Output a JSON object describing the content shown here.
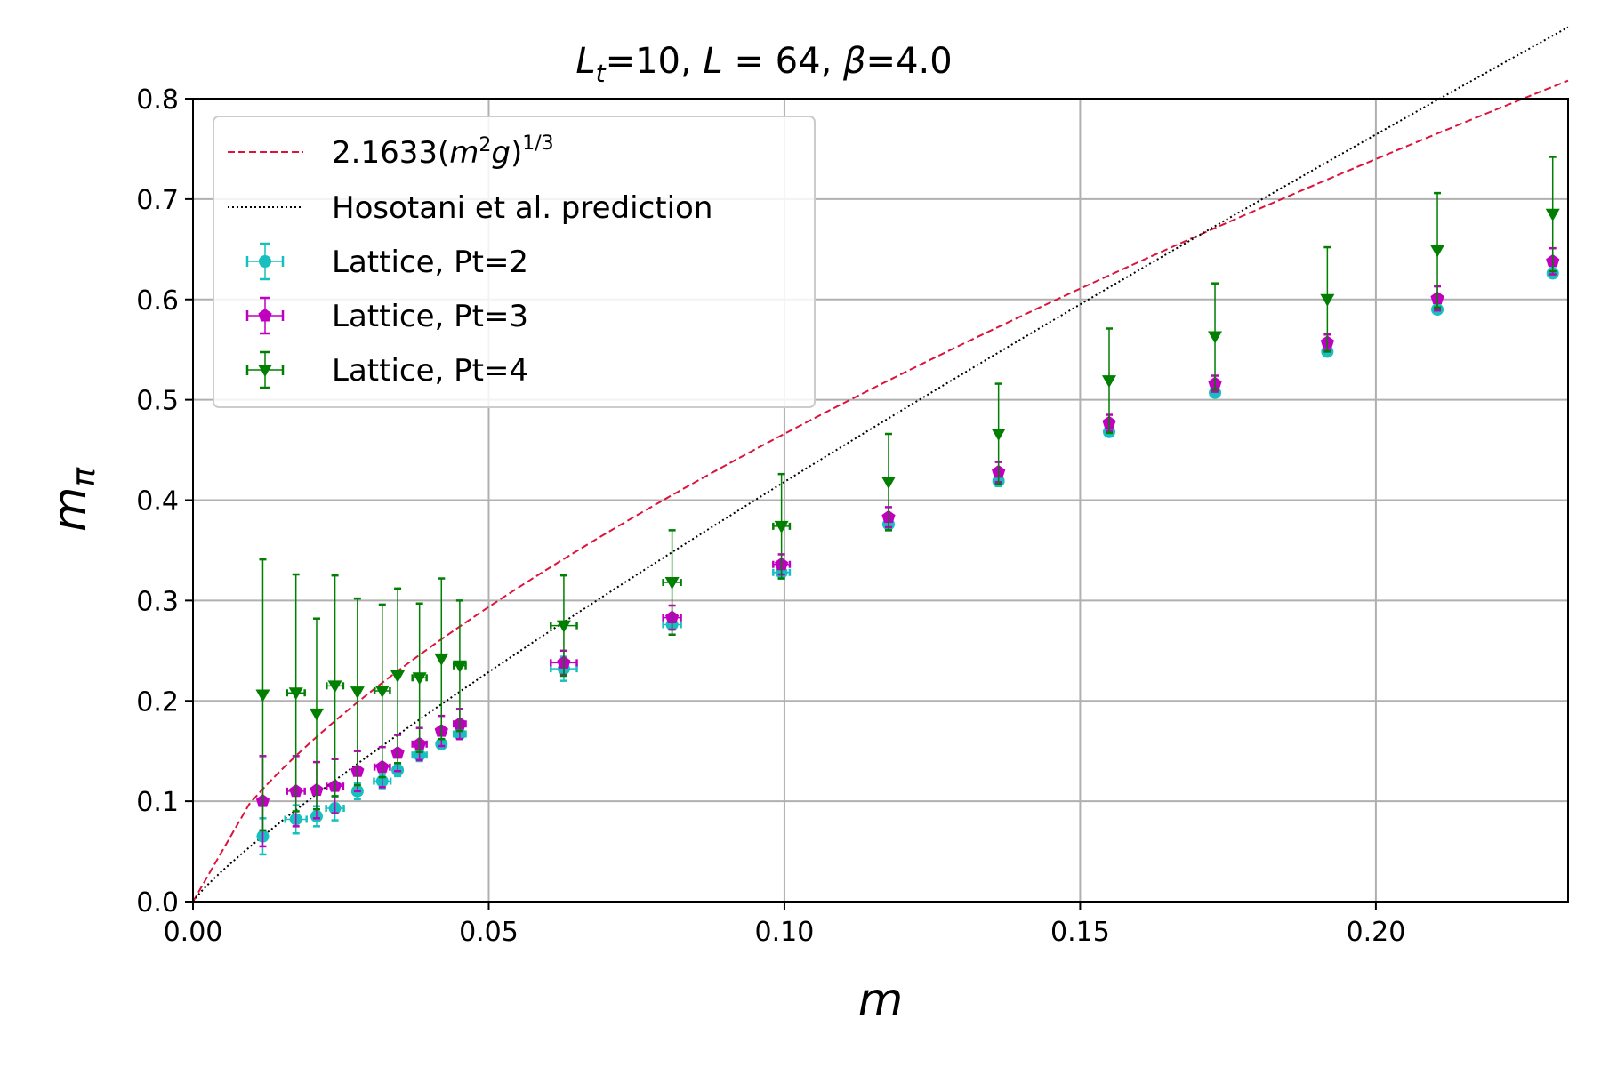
{
  "chart_data": {
    "type": "scatter",
    "title": "L_t=10,  L = 64, β=4.0",
    "title_parts": {
      "L1": "L",
      "sub": "t",
      "rest1": "=10,  ",
      "L2": "L",
      "rest2": " = 64, ",
      "beta": "β",
      "rest3": "=4.0"
    },
    "xlabel": "m",
    "ylabel_main": "m",
    "ylabel_sub": "π",
    "xlim": [
      0.0,
      0.2325
    ],
    "ylim": [
      0.0,
      0.8
    ],
    "x_ticks": [
      "0.00",
      "0.05",
      "0.10",
      "0.15",
      "0.20"
    ],
    "x_tick_values": [
      0.0,
      0.05,
      0.1,
      0.15,
      0.2
    ],
    "y_ticks": [
      "0.0",
      "0.1",
      "0.2",
      "0.3",
      "0.4",
      "0.5",
      "0.6",
      "0.7",
      "0.8"
    ],
    "y_tick_values": [
      0.0,
      0.1,
      0.2,
      0.3,
      0.4,
      0.5,
      0.6,
      0.7,
      0.8
    ],
    "grid": true,
    "legend_position": "upper-left",
    "lines": [
      {
        "name": "2.1633(m²g)^{1/3}",
        "legend_base": "2.1633(",
        "legend_m": "m",
        "legend_sup2": "2",
        "legend_g": "g",
        "legend_close": ")",
        "legend_exp": "1/3",
        "color": "#dc143c",
        "style": "dashed",
        "formula": "2.1633*x^(2/3)"
      },
      {
        "name": "Hosotani et al. prediction",
        "color": "#000000",
        "style": "dotted",
        "formula": "3.1*x^0.87"
      }
    ],
    "series": [
      {
        "name": "Lattice, Pt=2",
        "color": "#17bfbf",
        "marker": "circle",
        "x": [
          0.0118,
          0.0174,
          0.0209,
          0.024,
          0.0278,
          0.032,
          0.0346,
          0.0383,
          0.042,
          0.0451,
          0.0627,
          0.081,
          0.0995,
          0.1176,
          0.1362,
          0.1549,
          0.1728,
          0.1918,
          0.2104,
          0.2299
        ],
        "y": [
          0.065,
          0.082,
          0.085,
          0.093,
          0.11,
          0.12,
          0.131,
          0.146,
          0.157,
          0.167,
          0.232,
          0.276,
          0.328,
          0.376,
          0.419,
          0.468,
          0.507,
          0.548,
          0.59,
          0.626
        ],
        "yerr": [
          0.018,
          0.014,
          0.01,
          0.012,
          0.008,
          0.007,
          0.006,
          0.006,
          0.005,
          0.005,
          0.012,
          0.01,
          0.006,
          0.005,
          0.005,
          0.004,
          0.004,
          0.004,
          0.003,
          0.003
        ],
        "xerr": [
          0.0,
          0.0018,
          0.0,
          0.0015,
          0.0,
          0.0014,
          0.0,
          0.0012,
          0.0,
          0.001,
          0.0022,
          0.0015,
          0.0014,
          0.0,
          0.0,
          0.0,
          0.0,
          0.0,
          0.0,
          0.0
        ]
      },
      {
        "name": "Lattice, Pt=3",
        "color": "#bf00bf",
        "marker": "pentagon",
        "x": [
          0.0118,
          0.0174,
          0.0209,
          0.024,
          0.0278,
          0.032,
          0.0346,
          0.0383,
          0.042,
          0.0451,
          0.0627,
          0.081,
          0.0995,
          0.1176,
          0.1362,
          0.1549,
          0.1728,
          0.1918,
          0.2104,
          0.2299
        ],
        "y": [
          0.1,
          0.11,
          0.111,
          0.115,
          0.13,
          0.134,
          0.148,
          0.157,
          0.17,
          0.177,
          0.238,
          0.283,
          0.336,
          0.383,
          0.428,
          0.477,
          0.516,
          0.557,
          0.601,
          0.638
        ],
        "yerr": [
          0.045,
          0.035,
          0.028,
          0.027,
          0.02,
          0.02,
          0.018,
          0.016,
          0.015,
          0.015,
          0.012,
          0.012,
          0.01,
          0.01,
          0.01,
          0.008,
          0.008,
          0.008,
          0.012,
          0.013
        ],
        "xerr": [
          0.0,
          0.0015,
          0.0,
          0.0014,
          0.0,
          0.0013,
          0.0,
          0.0012,
          0.0,
          0.001,
          0.0022,
          0.0015,
          0.0014,
          0.0,
          0.0,
          0.0,
          0.0,
          0.0,
          0.0,
          0.0
        ]
      },
      {
        "name": "Lattice, Pt=4",
        "color": "#007f00",
        "marker": "triangle-down",
        "x": [
          0.0118,
          0.0174,
          0.0209,
          0.024,
          0.0278,
          0.032,
          0.0346,
          0.0383,
          0.042,
          0.0451,
          0.0627,
          0.081,
          0.0995,
          0.1176,
          0.1362,
          0.1549,
          0.1728,
          0.1918,
          0.2104,
          0.2299
        ],
        "y": [
          0.206,
          0.208,
          0.187,
          0.215,
          0.209,
          0.21,
          0.225,
          0.223,
          0.242,
          0.235,
          0.275,
          0.318,
          0.374,
          0.418,
          0.466,
          0.519,
          0.563,
          0.6,
          0.649,
          0.685
        ],
        "yerr": [
          0.135,
          0.118,
          0.095,
          0.11,
          0.093,
          0.086,
          0.087,
          0.074,
          0.08,
          0.065,
          0.05,
          0.052,
          0.052,
          0.048,
          0.05,
          0.052,
          0.053,
          0.052,
          0.057,
          0.057
        ],
        "xerr": [
          0.0,
          0.0015,
          0.0,
          0.0014,
          0.0,
          0.0013,
          0.0,
          0.0012,
          0.0,
          0.001,
          0.0022,
          0.0015,
          0.0014,
          0.0,
          0.0,
          0.0,
          0.0,
          0.0,
          0.0,
          0.0
        ]
      }
    ]
  }
}
